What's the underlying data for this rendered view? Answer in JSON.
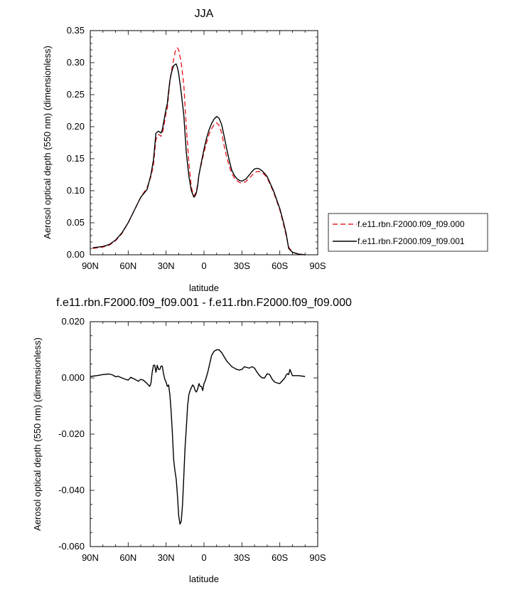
{
  "chart_data": [
    {
      "type": "line",
      "title": "JJA",
      "xlabel": "latitude",
      "ylabel": "Aerosol optical depth (550 nm) (dimensionless)",
      "xlim": [
        90,
        -90
      ],
      "ylim": [
        0,
        0.35
      ],
      "x_ticks": [
        90,
        60,
        30,
        0,
        -30,
        -60,
        -90
      ],
      "x_tick_labels": [
        "90N",
        "60N",
        "30N",
        "0",
        "30S",
        "60S",
        "90S"
      ],
      "y_ticks": [
        0,
        0.05,
        0.1,
        0.15,
        0.2,
        0.25,
        0.3,
        0.35
      ],
      "y_tick_labels": [
        "0.00",
        "0.05",
        "0.10",
        "0.15",
        "0.20",
        "0.25",
        "0.30",
        "0.35"
      ],
      "legend_position": "right",
      "series": [
        {
          "name": "f.e11.rbn.F2000.f09_f09.000",
          "color": "#e8222a",
          "dash": "dashed",
          "x": [
            88,
            80,
            75,
            70,
            65,
            60,
            55,
            50,
            45,
            42,
            40,
            38,
            36,
            34,
            33,
            32,
            30,
            29,
            28,
            27,
            26,
            25,
            24,
            23,
            22,
            21,
            20,
            18,
            16,
            14,
            12,
            10,
            8,
            7,
            6,
            5,
            4,
            2,
            0,
            -2,
            -4,
            -6,
            -8,
            -10,
            -12,
            -14,
            -16,
            -18,
            -20,
            -22,
            -24,
            -26,
            -28,
            -30,
            -33,
            -36,
            -38,
            -40,
            -42,
            -44,
            -46,
            -48,
            -50,
            -55,
            -60,
            -63,
            -65,
            -67,
            -70,
            -75,
            -80
          ],
          "y": [
            0.01,
            0.012,
            0.015,
            0.022,
            0.033,
            0.05,
            0.07,
            0.09,
            0.105,
            0.122,
            0.14,
            0.18,
            0.188,
            0.185,
            0.19,
            0.198,
            0.222,
            0.228,
            0.25,
            0.27,
            0.285,
            0.295,
            0.305,
            0.315,
            0.322,
            0.323,
            0.32,
            0.3,
            0.265,
            0.2,
            0.145,
            0.105,
            0.092,
            0.095,
            0.1,
            0.11,
            0.125,
            0.142,
            0.16,
            0.175,
            0.188,
            0.197,
            0.203,
            0.206,
            0.202,
            0.19,
            0.17,
            0.152,
            0.138,
            0.127,
            0.12,
            0.116,
            0.113,
            0.112,
            0.114,
            0.12,
            0.124,
            0.128,
            0.13,
            0.13,
            0.128,
            0.125,
            0.12,
            0.098,
            0.07,
            0.047,
            0.03,
            0.012,
            0.004,
            0.001,
            0.0
          ]
        },
        {
          "name": "f.e11.rbn.F2000.f09_f09.001",
          "color": "#000000",
          "dash": "solid",
          "x": [
            88,
            80,
            75,
            70,
            65,
            60,
            55,
            50,
            45,
            42,
            40,
            38,
            36,
            34,
            33,
            32,
            30,
            29,
            28,
            27,
            26,
            25,
            24,
            23,
            22,
            21,
            20,
            18,
            16,
            14,
            12,
            10,
            8,
            7,
            6,
            5,
            4,
            2,
            0,
            -2,
            -4,
            -6,
            -8,
            -10,
            -12,
            -14,
            -16,
            -18,
            -20,
            -22,
            -24,
            -26,
            -28,
            -30,
            -33,
            -36,
            -38,
            -40,
            -42,
            -44,
            -46,
            -48,
            -50,
            -55,
            -60,
            -63,
            -65,
            -67,
            -70,
            -75,
            -80
          ],
          "y": [
            0.011,
            0.013,
            0.016,
            0.023,
            0.034,
            0.05,
            0.07,
            0.09,
            0.102,
            0.125,
            0.148,
            0.19,
            0.193,
            0.19,
            0.195,
            0.206,
            0.228,
            0.236,
            0.255,
            0.272,
            0.282,
            0.29,
            0.295,
            0.297,
            0.298,
            0.292,
            0.283,
            0.253,
            0.218,
            0.16,
            0.123,
            0.1,
            0.09,
            0.092,
            0.097,
            0.108,
            0.125,
            0.145,
            0.165,
            0.182,
            0.195,
            0.205,
            0.212,
            0.216,
            0.213,
            0.203,
            0.185,
            0.165,
            0.147,
            0.132,
            0.124,
            0.119,
            0.116,
            0.115,
            0.118,
            0.125,
            0.13,
            0.134,
            0.135,
            0.134,
            0.131,
            0.127,
            0.122,
            0.1,
            0.072,
            0.05,
            0.033,
            0.01,
            0.004,
            0.001,
            0.0
          ]
        }
      ]
    },
    {
      "type": "line",
      "title": "f.e11.rbn.F2000.f09_f09.001 - f.e11.rbn.F2000.f09_f09.000",
      "xlabel": "latitude",
      "ylabel": "Aerosol optical depth (550 nm) (dimensionless)",
      "xlim": [
        90,
        -90
      ],
      "ylim": [
        -0.06,
        0.02
      ],
      "x_ticks": [
        90,
        60,
        30,
        0,
        -30,
        -60,
        -90
      ],
      "x_tick_labels": [
        "90N",
        "60N",
        "30N",
        "0",
        "30S",
        "60S",
        "90S"
      ],
      "y_ticks": [
        -0.06,
        -0.04,
        -0.02,
        0.0,
        0.02
      ],
      "y_tick_labels": [
        "-0.060",
        "-0.040",
        "-0.020",
        "0.000",
        "0.020"
      ],
      "series": [
        {
          "color": "#000000",
          "dash": "solid",
          "x": [
            90,
            85,
            80,
            75,
            72,
            70,
            68,
            65,
            62,
            60,
            58,
            55,
            52,
            50,
            48,
            46,
            44,
            43,
            42,
            41,
            40,
            39,
            38,
            37,
            36,
            35,
            34,
            33,
            32,
            31,
            30,
            29,
            28,
            27,
            26,
            25,
            24,
            23,
            22,
            21,
            20,
            19,
            18,
            17,
            16,
            15,
            14,
            13,
            12,
            11,
            10,
            9,
            8,
            7,
            6,
            5,
            4,
            3,
            2,
            1,
            0,
            -1,
            -2,
            -3,
            -4,
            -5,
            -6,
            -8,
            -10,
            -12,
            -14,
            -16,
            -18,
            -20,
            -22,
            -24,
            -26,
            -28,
            -30,
            -32,
            -34,
            -36,
            -38,
            -40,
            -42,
            -44,
            -46,
            -48,
            -50,
            -52,
            -54,
            -56,
            -58,
            -60,
            -62,
            -64,
            -65,
            -66,
            -67,
            -68,
            -70,
            -75,
            -80
          ],
          "y": [
            0.0005,
            0.0008,
            0.0012,
            0.0014,
            0.001,
            0.0004,
            0.0006,
            0.0,
            -0.0005,
            -0.0008,
            0.0002,
            -0.0004,
            -0.0012,
            -0.0005,
            -0.0008,
            -0.0016,
            -0.0025,
            -0.003,
            -0.002,
            0.002,
            0.0045,
            0.0045,
            0.002,
            0.0045,
            0.003,
            0.003,
            0.0042,
            0.0042,
            0.0015,
            -0.0005,
            -0.0015,
            -0.003,
            -0.0025,
            -0.006,
            -0.012,
            -0.02,
            -0.029,
            -0.033,
            -0.036,
            -0.042,
            -0.049,
            -0.052,
            -0.051,
            -0.045,
            -0.035,
            -0.025,
            -0.018,
            -0.01,
            -0.006,
            -0.0045,
            -0.0035,
            -0.0025,
            -0.003,
            -0.0045,
            -0.005,
            -0.004,
            -0.002,
            -0.003,
            -0.003,
            -0.0045,
            -0.002,
            -0.001,
            0.0005,
            0.002,
            0.004,
            0.006,
            0.008,
            0.0095,
            0.01,
            0.01,
            0.009,
            0.0075,
            0.006,
            0.005,
            0.004,
            0.0035,
            0.003,
            0.0028,
            0.003,
            0.004,
            0.0037,
            0.0035,
            0.004,
            0.0035,
            0.002,
            0.0008,
            0.0,
            0.0,
            0.0015,
            0.0012,
            -0.0005,
            -0.0015,
            -0.0018,
            -0.002,
            -0.001,
            0.0,
            0.001,
            0.0015,
            0.0012,
            0.003,
            0.0008,
            0.0008,
            0.0005
          ]
        }
      ]
    }
  ]
}
